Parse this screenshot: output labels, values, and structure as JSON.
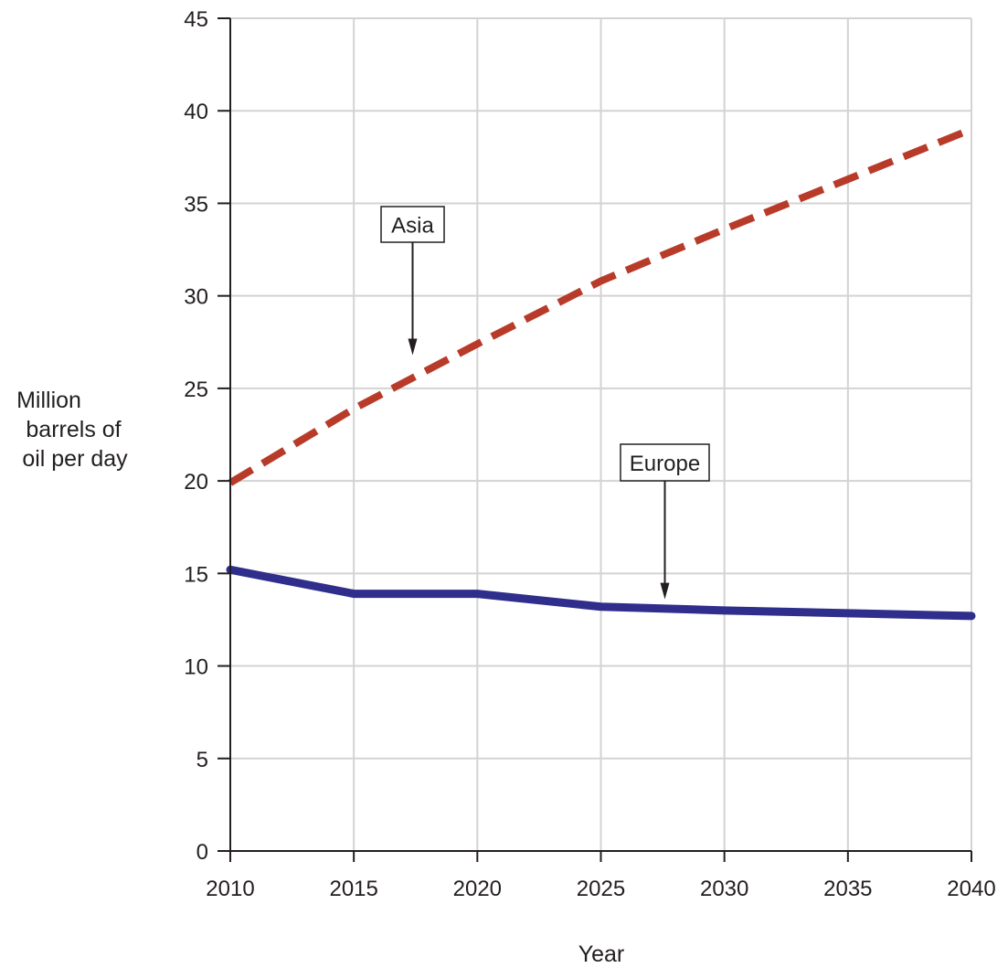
{
  "chart_data": {
    "type": "line",
    "title": "",
    "xlabel": "Year",
    "ylabel_lines": [
      "Million",
      "barrels of",
      "oil per day"
    ],
    "x": [
      2010,
      2015,
      2020,
      2025,
      2030,
      2035,
      2040
    ],
    "xlim": [
      2010,
      2040
    ],
    "ylim": [
      0,
      45
    ],
    "x_ticks": [
      "2010",
      "2015",
      "2020",
      "2025",
      "2030",
      "2035",
      "2040"
    ],
    "y_ticks": [
      "0",
      "5",
      "10",
      "15",
      "20",
      "25",
      "30",
      "35",
      "40",
      "45"
    ],
    "grid": true,
    "series": [
      {
        "name": "Asia",
        "values": [
          19.9,
          23.9,
          27.4,
          30.8,
          33.6,
          36.3,
          39.0
        ],
        "color": "#b83b2a",
        "style": "dashed"
      },
      {
        "name": "Europe",
        "values": [
          15.2,
          13.9,
          13.9,
          13.2,
          13.0,
          12.85,
          12.7
        ],
        "color": "#2f2e8c",
        "style": "solid"
      }
    ],
    "annotations": [
      {
        "text": "Asia",
        "series": "Asia",
        "arrow_to": {
          "x": 2017.3,
          "y": 26.8
        }
      },
      {
        "text": "Europe",
        "series": "Europe",
        "arrow_to": {
          "x": 2027.5,
          "y": 13.6
        }
      }
    ]
  }
}
